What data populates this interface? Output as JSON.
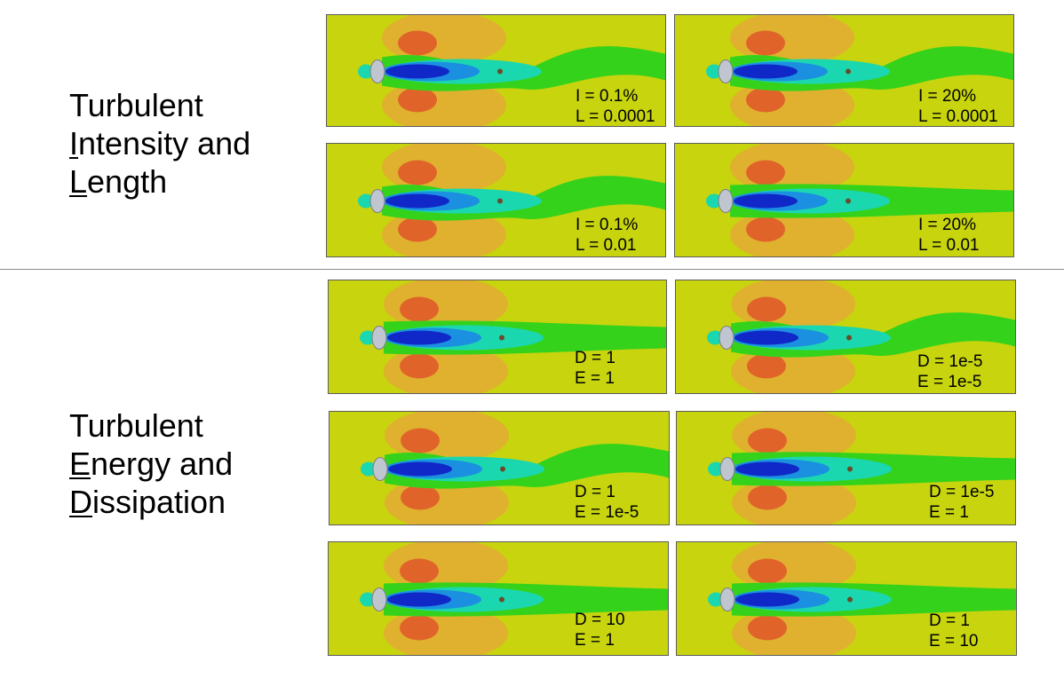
{
  "sections": {
    "intensity": {
      "lines": [
        {
          "before": "Turbulent",
          "ul": "",
          "rest": ""
        },
        {
          "before": "",
          "ul": "I",
          "rest": "ntensity and"
        },
        {
          "before": "",
          "ul": "L",
          "rest": "ength"
        }
      ]
    },
    "energy": {
      "lines": [
        {
          "before": "Turbulent",
          "ul": "",
          "rest": ""
        },
        {
          "before": "",
          "ul": "E",
          "rest": "nergy and"
        },
        {
          "before": "",
          "ul": "D",
          "rest": "issipation"
        }
      ]
    }
  },
  "panels": [
    {
      "l1": "I = 0.1%",
      "l2": "L = 0.0001",
      "wake": "vortex"
    },
    {
      "l1": "I = 20%",
      "l2": "L = 0.0001",
      "wake": "vortex"
    },
    {
      "l1": "I = 0.1%",
      "l2": "L = 0.01",
      "wake": "vortex"
    },
    {
      "l1": "I = 20%",
      "l2": "L = 0.01",
      "wake": "steady"
    },
    {
      "l1": "D = 1",
      "l2": "E = 1",
      "wake": "steady"
    },
    {
      "l1": "D = 1e-5",
      "l2": "E = 1e-5",
      "wake": "vortex"
    },
    {
      "l1": "D = 1",
      "l2": "E = 1e-5",
      "wake": "vortex"
    },
    {
      "l1": "D = 1e-5",
      "l2": "E = 1",
      "wake": "steady"
    },
    {
      "l1": "D = 10",
      "l2": "E = 1",
      "wake": "steady"
    },
    {
      "l1": "D = 1",
      "l2": "E = 10",
      "wake": "steady"
    }
  ]
}
